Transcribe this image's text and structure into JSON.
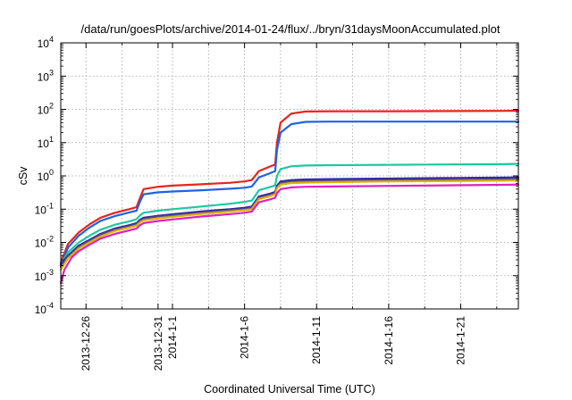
{
  "chart_data": {
    "type": "line",
    "title": "/data/run/goesPlots/archive/2014-01-24/flux/../bryn/31daysMoonAccumulated.plot",
    "xlabel": "Coordinated Universal Time (UTC)",
    "ylabel": "cSv",
    "yscale": "log",
    "ylim": [
      0.0001,
      10000
    ],
    "xlim": [
      "2013-12-24 06:00",
      "2014-01-25 00:00"
    ],
    "grid": true,
    "y_ticks": [
      {
        "base": "10",
        "exp": "-4",
        "value": 0.0001
      },
      {
        "base": "10",
        "exp": "-3",
        "value": 0.001
      },
      {
        "base": "10",
        "exp": "-2",
        "value": 0.01
      },
      {
        "base": "10",
        "exp": "-1",
        "value": 0.1
      },
      {
        "base": "10",
        "exp": "0",
        "value": 1
      },
      {
        "base": "10",
        "exp": "1",
        "value": 10
      },
      {
        "base": "10",
        "exp": "2",
        "value": 100
      },
      {
        "base": "10",
        "exp": "3",
        "value": 1000
      },
      {
        "base": "10",
        "exp": "4",
        "value": 10000
      }
    ],
    "x_ticks": [
      {
        "date": "2013-12-26",
        "label": "2013-12-26"
      },
      {
        "date": "2013-12-31",
        "label": "2013-12-31"
      },
      {
        "date": "2014-01-01",
        "label": "2014-1-1"
      },
      {
        "date": "2014-01-06",
        "label": "2014-1-6"
      },
      {
        "date": "2014-01-11",
        "label": "2014-1-11"
      },
      {
        "date": "2014-01-16",
        "label": "2014-1-16"
      },
      {
        "date": "2014-01-21",
        "label": "2014-1-21"
      }
    ],
    "x_minor_grid": [
      "2013-12-28 12:00",
      "2014-01-03 12:00",
      "2014-01-08 12:00",
      "2014-01-13 12:00",
      "2014-01-18 12:00",
      "2014-01-23 12:00"
    ],
    "series": [
      {
        "color": "#e8231e",
        "points": [
          [
            "2013-12-24 06:00",
            0.0025
          ],
          [
            "2013-12-24 18:00",
            0.009
          ],
          [
            "2013-12-25 12:00",
            0.02
          ],
          [
            "2013-12-26 06:00",
            0.035
          ],
          [
            "2013-12-27 00:00",
            0.055
          ],
          [
            "2013-12-28 00:00",
            0.078
          ],
          [
            "2013-12-29 00:00",
            0.1
          ],
          [
            "2013-12-29 12:00",
            0.115
          ],
          [
            "2013-12-29 18:00",
            0.22
          ],
          [
            "2013-12-30 00:00",
            0.4
          ],
          [
            "2013-12-31 00:00",
            0.47
          ],
          [
            "2014-01-01 00:00",
            0.51
          ],
          [
            "2014-01-03 00:00",
            0.56
          ],
          [
            "2014-01-05 00:00",
            0.62
          ],
          [
            "2014-01-06 00:00",
            0.68
          ],
          [
            "2014-01-06 12:00",
            0.75
          ],
          [
            "2014-01-07 00:00",
            1.4
          ],
          [
            "2014-01-07 18:00",
            1.9
          ],
          [
            "2014-01-08 03:00",
            2.2
          ],
          [
            "2014-01-08 06:00",
            10
          ],
          [
            "2014-01-08 12:00",
            40
          ],
          [
            "2014-01-09 06:00",
            75
          ],
          [
            "2014-01-10 06:00",
            86
          ],
          [
            "2014-01-12 00:00",
            88
          ],
          [
            "2014-01-16 00:00",
            88
          ],
          [
            "2014-01-20 00:00",
            89
          ],
          [
            "2014-01-24 00:00",
            90
          ],
          [
            "2014-01-25 00:00",
            91
          ]
        ]
      },
      {
        "color": "#1e64e0",
        "points": [
          [
            "2013-12-24 06:00",
            0.002
          ],
          [
            "2013-12-24 18:00",
            0.007
          ],
          [
            "2013-12-25 12:00",
            0.016
          ],
          [
            "2013-12-26 06:00",
            0.028
          ],
          [
            "2013-12-27 00:00",
            0.044
          ],
          [
            "2013-12-28 00:00",
            0.062
          ],
          [
            "2013-12-29 00:00",
            0.08
          ],
          [
            "2013-12-29 12:00",
            0.09
          ],
          [
            "2013-12-29 18:00",
            0.17
          ],
          [
            "2013-12-30 00:00",
            0.28
          ],
          [
            "2013-12-31 00:00",
            0.32
          ],
          [
            "2014-01-01 00:00",
            0.34
          ],
          [
            "2014-01-03 00:00",
            0.37
          ],
          [
            "2014-01-05 00:00",
            0.41
          ],
          [
            "2014-01-06 00:00",
            0.44
          ],
          [
            "2014-01-06 12:00",
            0.48
          ],
          [
            "2014-01-07 00:00",
            0.9
          ],
          [
            "2014-01-07 18:00",
            1.2
          ],
          [
            "2014-01-08 03:00",
            1.4
          ],
          [
            "2014-01-08 06:00",
            6
          ],
          [
            "2014-01-08 12:00",
            20
          ],
          [
            "2014-01-09 06:00",
            36
          ],
          [
            "2014-01-10 06:00",
            42
          ],
          [
            "2014-01-12 00:00",
            43
          ],
          [
            "2014-01-16 00:00",
            43
          ],
          [
            "2014-01-20 00:00",
            43
          ],
          [
            "2014-01-24 00:00",
            43
          ],
          [
            "2014-01-25 00:00",
            43
          ]
        ]
      },
      {
        "color": "#1ec8a0",
        "points": [
          [
            "2013-12-24 06:00",
            0.0022
          ],
          [
            "2013-12-24 18:00",
            0.005
          ],
          [
            "2013-12-25 12:00",
            0.01
          ],
          [
            "2013-12-26 06:00",
            0.016
          ],
          [
            "2013-12-27 00:00",
            0.024
          ],
          [
            "2013-12-28 00:00",
            0.034
          ],
          [
            "2013-12-29 00:00",
            0.043
          ],
          [
            "2013-12-29 12:00",
            0.05
          ],
          [
            "2013-12-29 18:00",
            0.065
          ],
          [
            "2013-12-30 00:00",
            0.078
          ],
          [
            "2013-12-31 00:00",
            0.09
          ],
          [
            "2014-01-01 00:00",
            0.1
          ],
          [
            "2014-01-03 00:00",
            0.12
          ],
          [
            "2014-01-05 00:00",
            0.145
          ],
          [
            "2014-01-06 00:00",
            0.165
          ],
          [
            "2014-01-06 12:00",
            0.18
          ],
          [
            "2014-01-07 00:00",
            0.37
          ],
          [
            "2014-01-07 18:00",
            0.46
          ],
          [
            "2014-01-08 03:00",
            0.52
          ],
          [
            "2014-01-08 06:00",
            1.0
          ],
          [
            "2014-01-08 12:00",
            1.6
          ],
          [
            "2014-01-09 06:00",
            1.95
          ],
          [
            "2014-01-10 06:00",
            2.05
          ],
          [
            "2014-01-12 00:00",
            2.1
          ],
          [
            "2014-01-16 00:00",
            2.15
          ],
          [
            "2014-01-20 00:00",
            2.2
          ],
          [
            "2014-01-24 00:00",
            2.25
          ],
          [
            "2014-01-25 00:00",
            2.3
          ]
        ]
      },
      {
        "color": "#2a2aa0",
        "points": [
          [
            "2013-12-24 06:00",
            0.0022
          ],
          [
            "2013-12-24 18:00",
            0.004
          ],
          [
            "2013-12-25 12:00",
            0.008
          ],
          [
            "2013-12-26 06:00",
            0.012
          ],
          [
            "2013-12-27 00:00",
            0.018
          ],
          [
            "2013-12-28 00:00",
            0.026
          ],
          [
            "2013-12-29 00:00",
            0.033
          ],
          [
            "2013-12-29 12:00",
            0.038
          ],
          [
            "2013-12-29 18:00",
            0.048
          ],
          [
            "2013-12-30 00:00",
            0.055
          ],
          [
            "2013-12-31 00:00",
            0.063
          ],
          [
            "2014-01-01 00:00",
            0.07
          ],
          [
            "2014-01-03 00:00",
            0.085
          ],
          [
            "2014-01-05 00:00",
            0.1
          ],
          [
            "2014-01-06 00:00",
            0.11
          ],
          [
            "2014-01-06 12:00",
            0.12
          ],
          [
            "2014-01-07 00:00",
            0.24
          ],
          [
            "2014-01-07 18:00",
            0.29
          ],
          [
            "2014-01-08 03:00",
            0.33
          ],
          [
            "2014-01-08 06:00",
            0.5
          ],
          [
            "2014-01-08 12:00",
            0.68
          ],
          [
            "2014-01-09 06:00",
            0.75
          ],
          [
            "2014-01-10 06:00",
            0.78
          ],
          [
            "2014-01-12 00:00",
            0.8
          ],
          [
            "2014-01-16 00:00",
            0.83
          ],
          [
            "2014-01-20 00:00",
            0.86
          ],
          [
            "2014-01-24 00:00",
            0.89
          ],
          [
            "2014-01-25 00:00",
            0.9
          ]
        ]
      },
      {
        "color": "#6a4a8a",
        "points": [
          [
            "2013-12-24 06:00",
            0.0018
          ],
          [
            "2013-12-24 18:00",
            0.0036
          ],
          [
            "2013-12-25 12:00",
            0.0072
          ],
          [
            "2013-12-26 06:00",
            0.011
          ],
          [
            "2013-12-27 00:00",
            0.0165
          ],
          [
            "2013-12-28 00:00",
            0.024
          ],
          [
            "2013-12-29 00:00",
            0.03
          ],
          [
            "2013-12-29 12:00",
            0.035
          ],
          [
            "2013-12-29 18:00",
            0.044
          ],
          [
            "2013-12-30 00:00",
            0.05
          ],
          [
            "2013-12-31 00:00",
            0.058
          ],
          [
            "2014-01-01 00:00",
            0.064
          ],
          [
            "2014-01-03 00:00",
            0.078
          ],
          [
            "2014-01-05 00:00",
            0.092
          ],
          [
            "2014-01-06 00:00",
            0.1
          ],
          [
            "2014-01-06 12:00",
            0.11
          ],
          [
            "2014-01-07 00:00",
            0.22
          ],
          [
            "2014-01-07 18:00",
            0.265
          ],
          [
            "2014-01-08 03:00",
            0.3
          ],
          [
            "2014-01-08 06:00",
            0.45
          ],
          [
            "2014-01-08 12:00",
            0.6
          ],
          [
            "2014-01-09 06:00",
            0.66
          ],
          [
            "2014-01-10 06:00",
            0.69
          ],
          [
            "2014-01-12 00:00",
            0.71
          ],
          [
            "2014-01-16 00:00",
            0.74
          ],
          [
            "2014-01-20 00:00",
            0.76
          ],
          [
            "2014-01-24 00:00",
            0.78
          ],
          [
            "2014-01-25 00:00",
            0.79
          ]
        ]
      },
      {
        "color": "#d8b400",
        "points": [
          [
            "2013-12-24 06:00",
            0.0015
          ],
          [
            "2013-12-24 18:00",
            0.0033
          ],
          [
            "2013-12-25 12:00",
            0.0066
          ],
          [
            "2013-12-26 06:00",
            0.01
          ],
          [
            "2013-12-27 00:00",
            0.015
          ],
          [
            "2013-12-28 00:00",
            0.022
          ],
          [
            "2013-12-29 00:00",
            0.028
          ],
          [
            "2013-12-29 12:00",
            0.032
          ],
          [
            "2013-12-29 18:00",
            0.04
          ],
          [
            "2013-12-30 00:00",
            0.046
          ],
          [
            "2013-12-31 00:00",
            0.053
          ],
          [
            "2014-01-01 00:00",
            0.059
          ],
          [
            "2014-01-03 00:00",
            0.072
          ],
          [
            "2014-01-05 00:00",
            0.085
          ],
          [
            "2014-01-06 00:00",
            0.093
          ],
          [
            "2014-01-06 12:00",
            0.1
          ],
          [
            "2014-01-07 00:00",
            0.2
          ],
          [
            "2014-01-07 18:00",
            0.245
          ],
          [
            "2014-01-08 03:00",
            0.28
          ],
          [
            "2014-01-08 06:00",
            0.42
          ],
          [
            "2014-01-08 12:00",
            0.55
          ],
          [
            "2014-01-09 06:00",
            0.61
          ],
          [
            "2014-01-10 06:00",
            0.63
          ],
          [
            "2014-01-12 00:00",
            0.65
          ],
          [
            "2014-01-16 00:00",
            0.68
          ],
          [
            "2014-01-20 00:00",
            0.7
          ],
          [
            "2014-01-24 00:00",
            0.72
          ],
          [
            "2014-01-25 00:00",
            0.73
          ]
        ]
      },
      {
        "color": "#e020c0",
        "points": [
          [
            "2013-12-24 06:00",
            0.0006
          ],
          [
            "2013-12-24 12:00",
            0.0015
          ],
          [
            "2013-12-25 00:00",
            0.0035
          ],
          [
            "2013-12-25 12:00",
            0.0055
          ],
          [
            "2013-12-26 06:00",
            0.0085
          ],
          [
            "2013-12-27 00:00",
            0.013
          ],
          [
            "2013-12-28 00:00",
            0.018
          ],
          [
            "2013-12-29 00:00",
            0.023
          ],
          [
            "2013-12-29 12:00",
            0.026
          ],
          [
            "2013-12-29 18:00",
            0.033
          ],
          [
            "2013-12-30 00:00",
            0.038
          ],
          [
            "2013-12-31 00:00",
            0.044
          ],
          [
            "2014-01-01 00:00",
            0.049
          ],
          [
            "2014-01-03 00:00",
            0.06
          ],
          [
            "2014-01-05 00:00",
            0.071
          ],
          [
            "2014-01-06 00:00",
            0.078
          ],
          [
            "2014-01-06 12:00",
            0.085
          ],
          [
            "2014-01-07 00:00",
            0.16
          ],
          [
            "2014-01-07 18:00",
            0.195
          ],
          [
            "2014-01-08 03:00",
            0.22
          ],
          [
            "2014-01-08 06:00",
            0.3
          ],
          [
            "2014-01-08 12:00",
            0.4
          ],
          [
            "2014-01-09 06:00",
            0.45
          ],
          [
            "2014-01-10 06:00",
            0.47
          ],
          [
            "2014-01-12 00:00",
            0.48
          ],
          [
            "2014-01-16 00:00",
            0.5
          ],
          [
            "2014-01-20 00:00",
            0.52
          ],
          [
            "2014-01-24 00:00",
            0.54
          ],
          [
            "2014-01-25 00:00",
            0.55
          ]
        ]
      }
    ]
  }
}
